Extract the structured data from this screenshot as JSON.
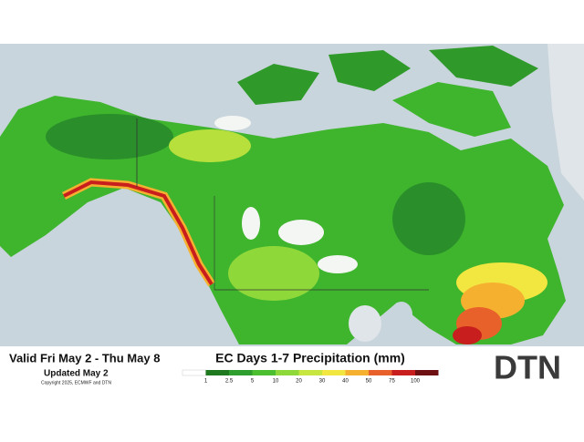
{
  "info": {
    "valid": "Valid Fri May 2 - Thu May 8",
    "updated": "Updated May 2",
    "copyright": "Copyright 2025, ECMWF and DTN"
  },
  "legend": {
    "title": "EC Days 1-7 Precipitation (mm)",
    "labels": [
      1,
      2.5,
      5,
      10,
      20,
      30,
      40,
      50,
      75,
      100
    ],
    "colors": [
      "#ffffff",
      "#1f7a1f",
      "#2e9e2e",
      "#4cbf30",
      "#8fd83a",
      "#c8e640",
      "#f2e640",
      "#f5b030",
      "#e8602a",
      "#c81e1e",
      "#6e0f14"
    ]
  },
  "logo": "DTN"
}
